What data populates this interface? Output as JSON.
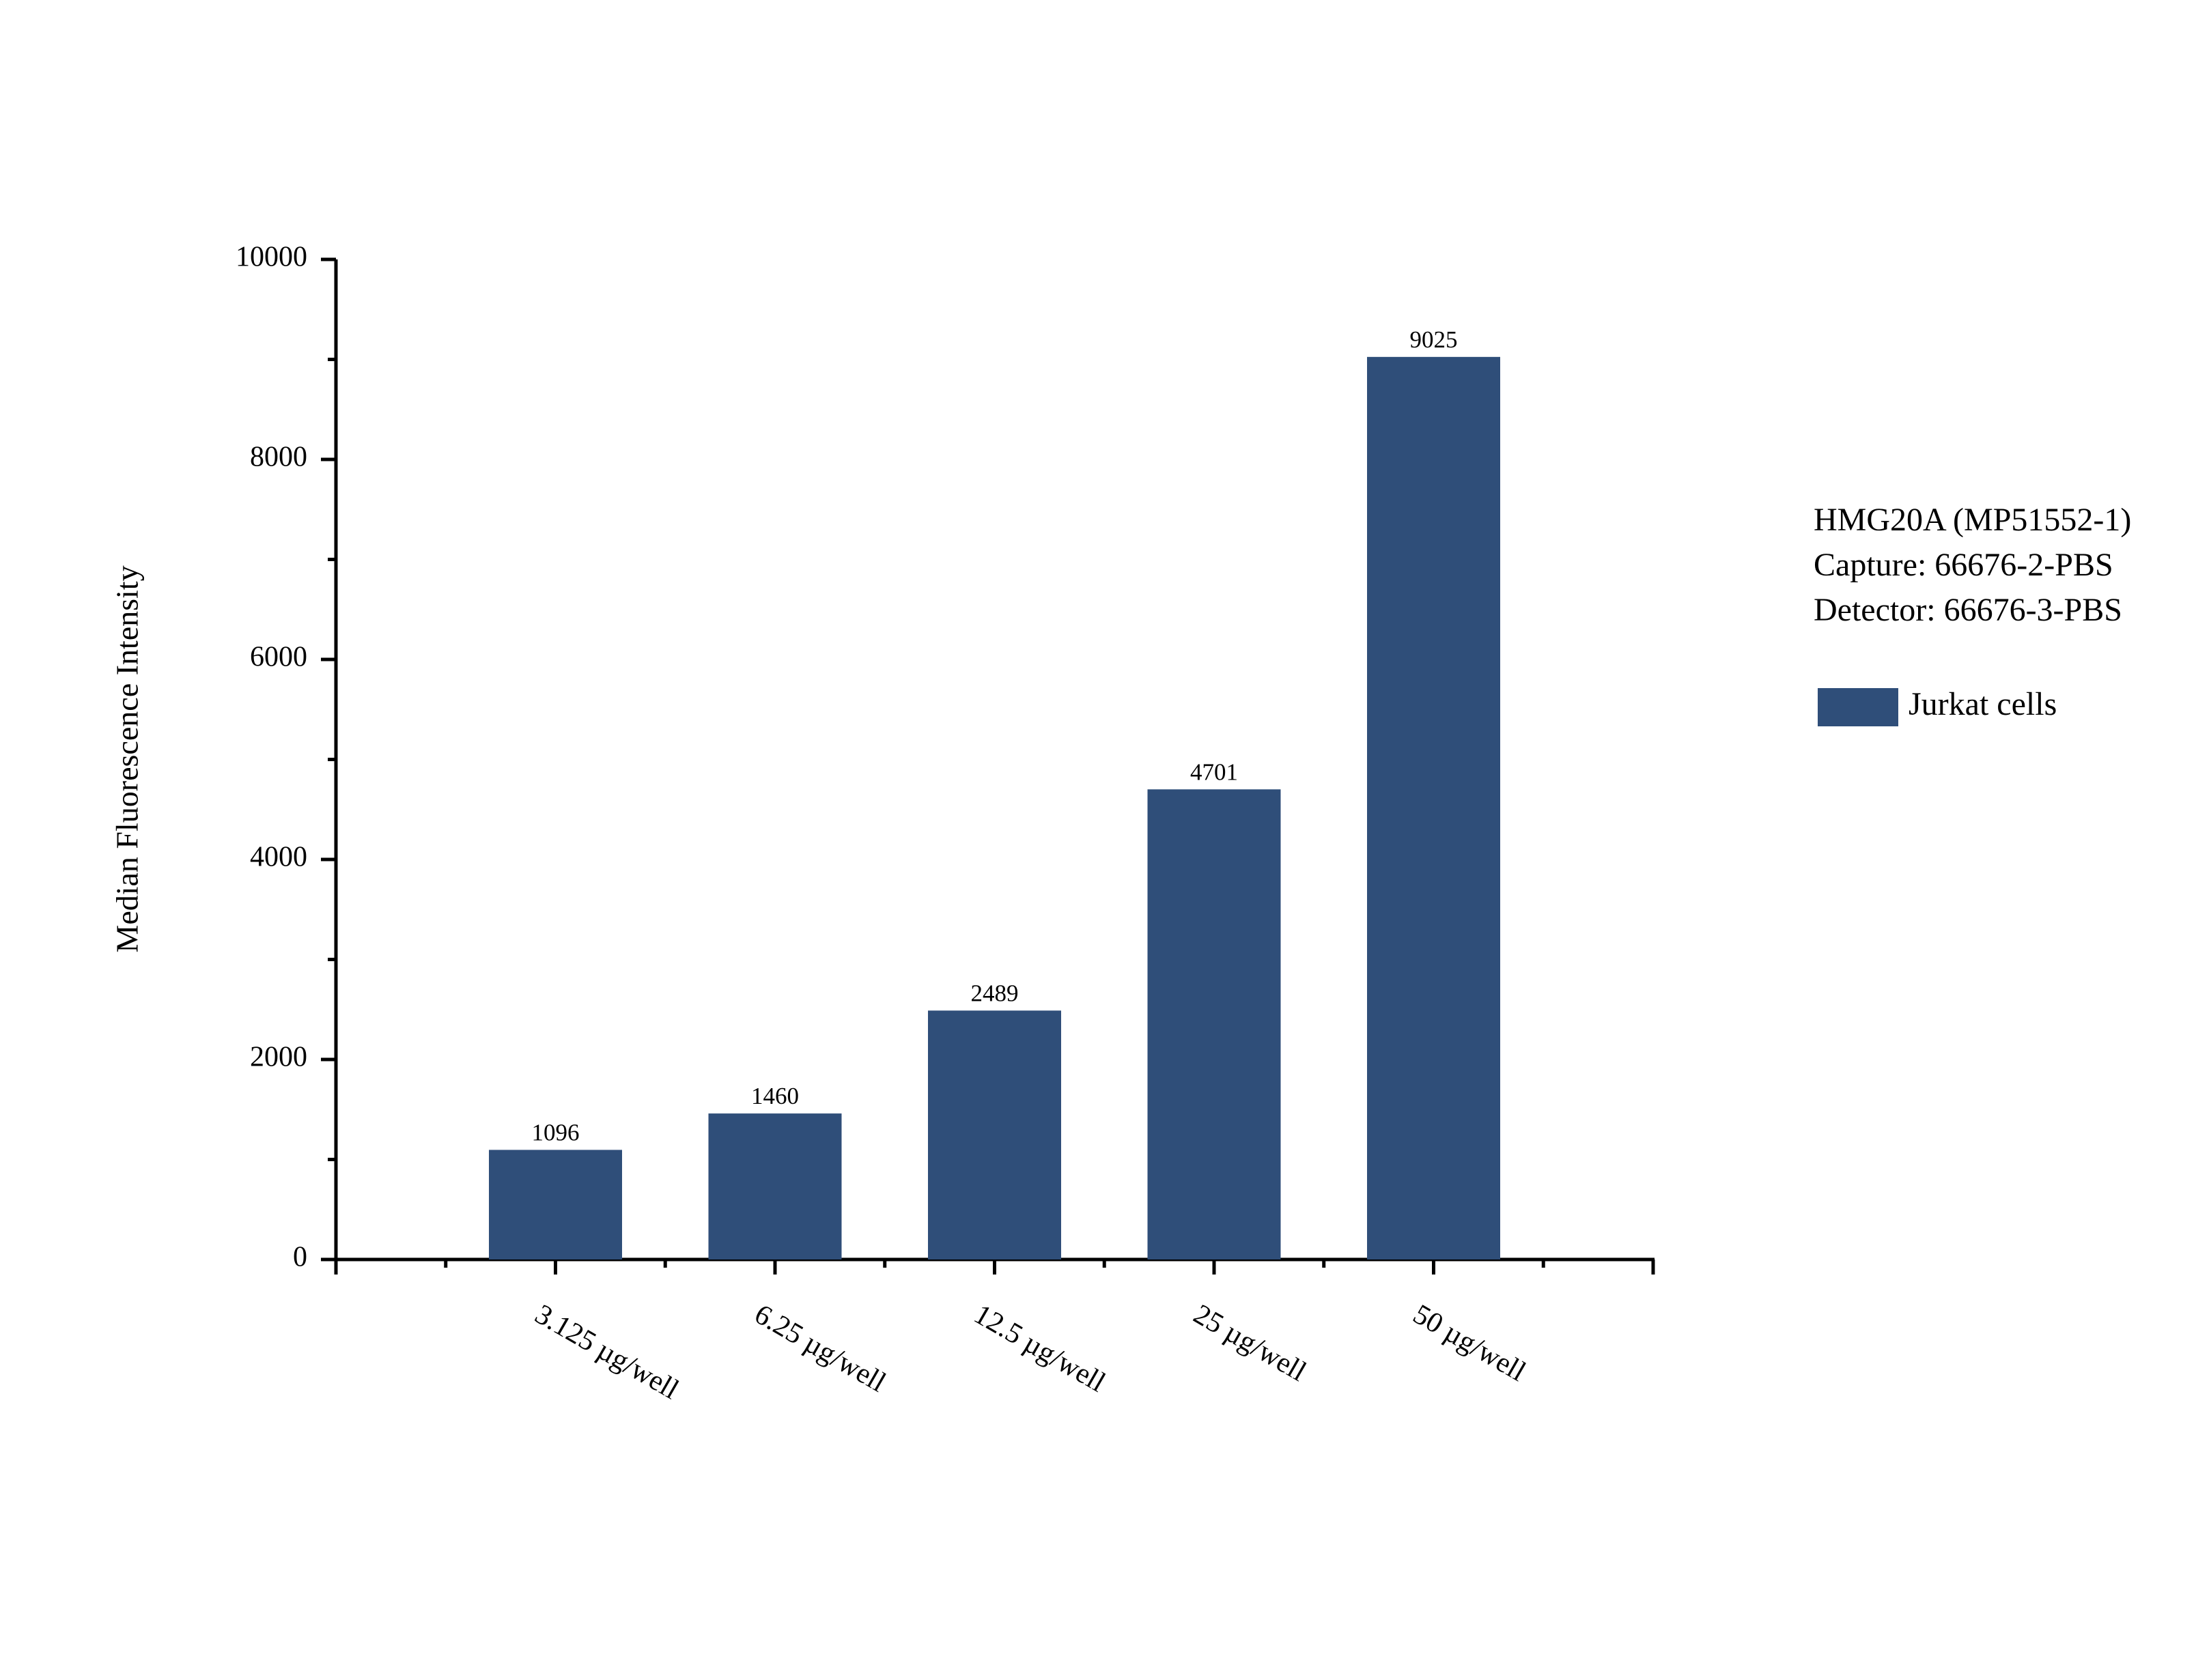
{
  "chart_data": {
    "type": "bar",
    "y_label": "Median Fluorescence Intensity",
    "annotations": [
      "HMG20A (MP51552-1)",
      "Capture: 66676-2-PBS",
      "Detector: 66676-3-PBS"
    ],
    "categories": [
      "3.125 µg/well",
      "6.25 µg/well",
      "12.5 µg/well",
      "25 µg/well",
      "50 µg/well"
    ],
    "series": [
      {
        "name": "Jurkat cells",
        "color": "#2f4e79",
        "values": [
          1096,
          1460,
          2489,
          4701,
          9025
        ]
      }
    ],
    "ylim": [
      0,
      10000
    ],
    "yticks": [
      0,
      2000,
      4000,
      6000,
      8000,
      10000
    ],
    "grid": false
  }
}
